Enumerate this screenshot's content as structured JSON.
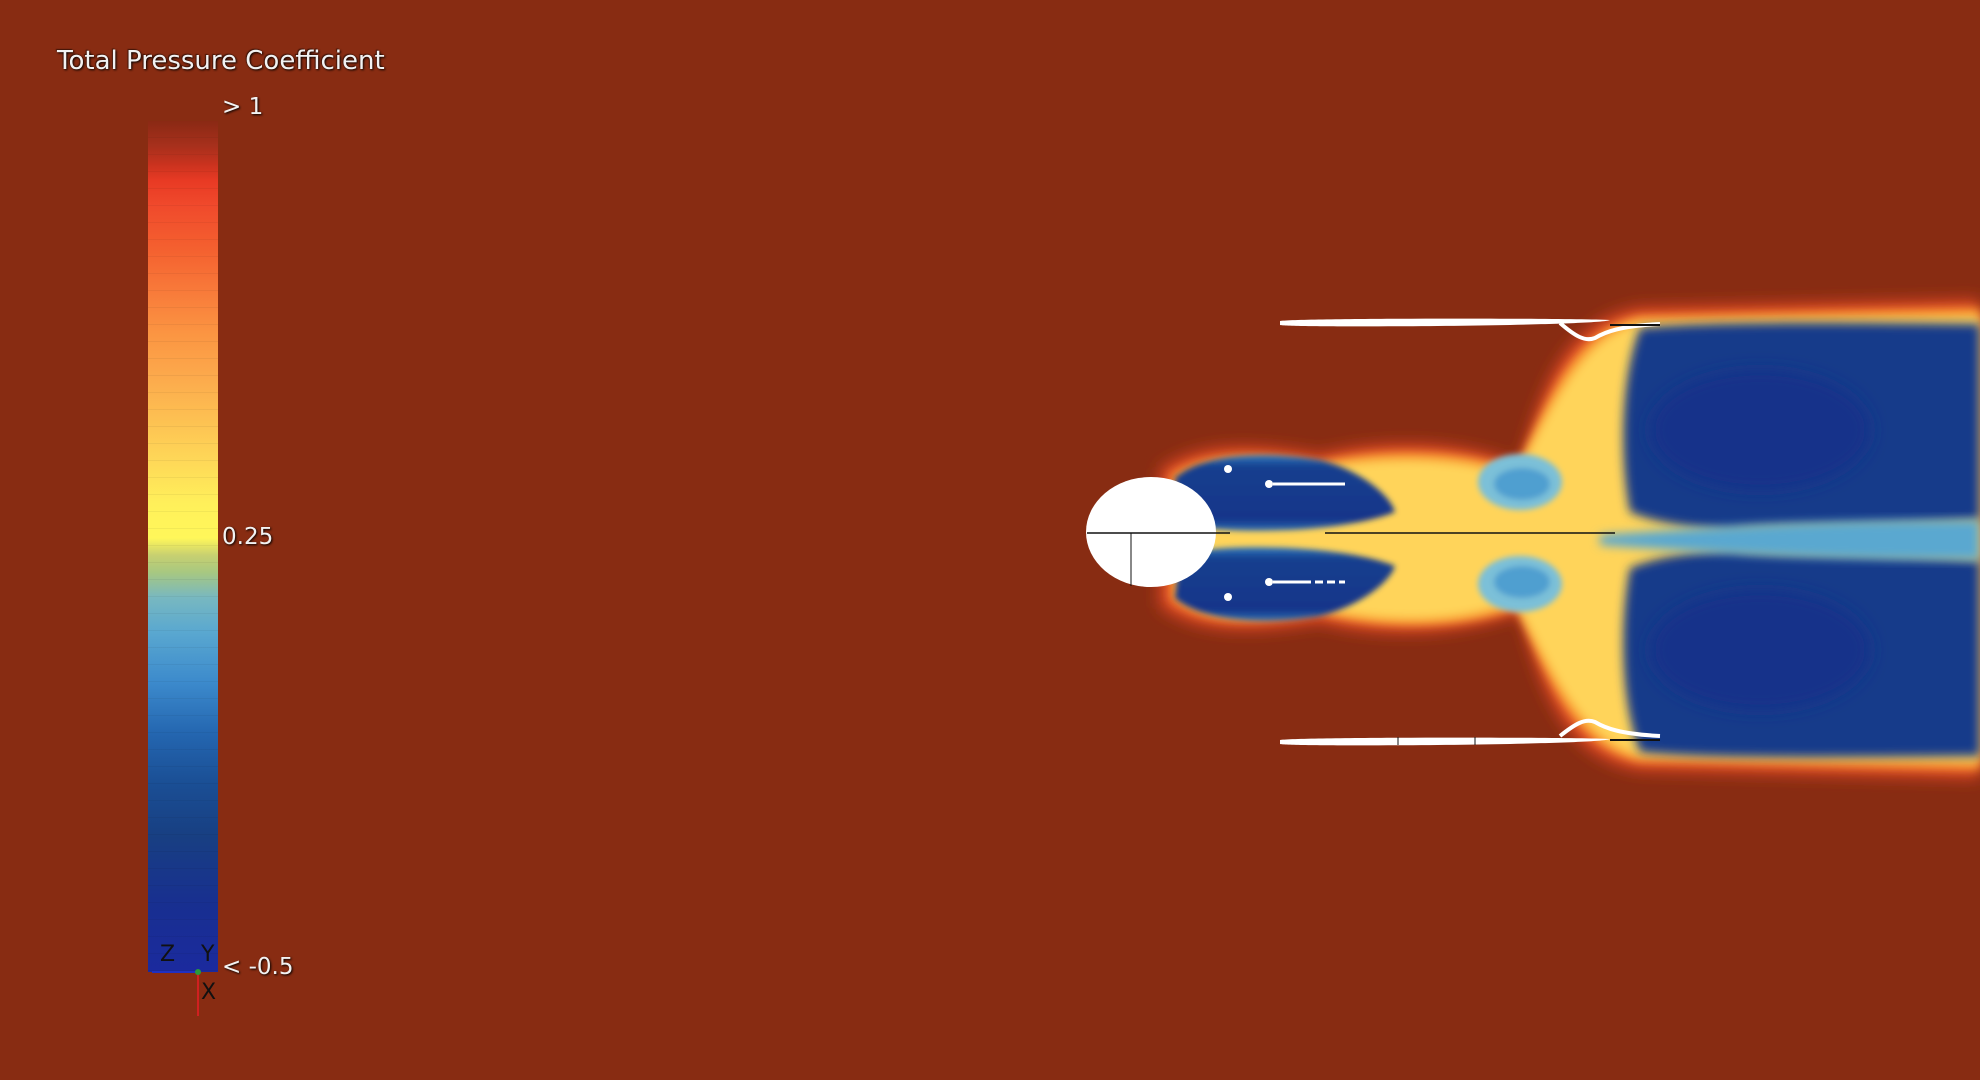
{
  "legend": {
    "title": "Total Pressure Coefficient",
    "max_label": "> 1",
    "mid_label": "0.25",
    "min_label": "< -0.5"
  },
  "orientation_axes": {
    "z_label": "Z",
    "y_label": "Y",
    "x_label": "X"
  },
  "colors": {
    "background": "#882c12",
    "body_fill": "#ffffff",
    "wake_deep": "#173a8a",
    "wake_mid": "#2f78c0",
    "wake_light": "#7bc0d8",
    "shear_yellow": "#ffd45a",
    "shear_orange": "#f8962f",
    "shear_red": "#e24a26"
  }
}
